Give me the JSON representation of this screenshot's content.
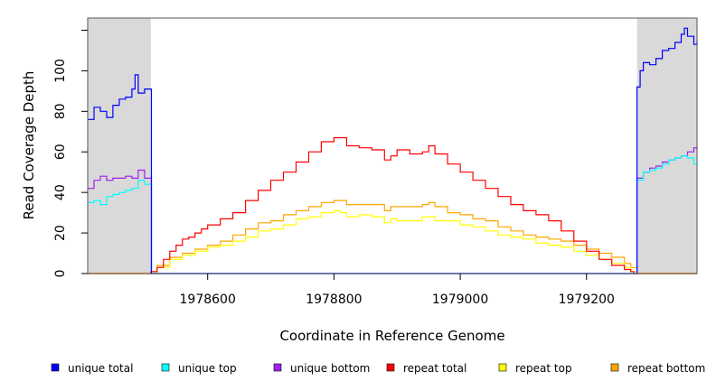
{
  "chart_data": {
    "type": "line",
    "title": "",
    "xlabel": "Coordinate in Reference Genome",
    "ylabel": "Read Coverage Depth",
    "xlim": [
      1978410,
      1979375
    ],
    "ylim": [
      0,
      126
    ],
    "x_ticks": [
      1978600,
      1978800,
      1979000,
      1979200
    ],
    "x_tick_labels": [
      "1978600",
      "1978800",
      "1979000",
      "1979200"
    ],
    "y_ticks": [
      0,
      20,
      40,
      60,
      80,
      100
    ],
    "y_tick_labels": [
      "0",
      "20",
      "40",
      "60",
      "80",
      "100"
    ],
    "grid": false,
    "legend_position": "bottom",
    "shaded_regions": [
      {
        "x0": 1978410,
        "x1": 1978510,
        "color": "#d9d9d9"
      },
      {
        "x0": 1979280,
        "x1": 1979375,
        "color": "#d9d9d9"
      }
    ],
    "series": [
      {
        "name": "unique total",
        "color": "#0000ff",
        "x": [
          1978410,
          1978420,
          1978430,
          1978440,
          1978450,
          1978460,
          1978470,
          1978480,
          1978485,
          1978490,
          1978500,
          1978510,
          1978511,
          1979279,
          1979280,
          1979285,
          1979290,
          1979300,
          1979310,
          1979320,
          1979330,
          1979340,
          1979350,
          1979355,
          1979360,
          1979370,
          1979375
        ],
        "values": [
          76,
          82,
          80,
          77,
          83,
          86,
          87,
          91,
          98,
          89,
          91,
          91,
          0,
          0,
          92,
          100,
          104,
          103,
          106,
          110,
          111,
          114,
          118,
          121,
          117,
          113,
          115
        ]
      },
      {
        "name": "unique top",
        "color": "#00ffff",
        "x": [
          1978410,
          1978420,
          1978430,
          1978440,
          1978450,
          1978460,
          1978470,
          1978480,
          1978490,
          1978500,
          1978510,
          1978511,
          1979279,
          1979280,
          1979290,
          1979300,
          1979310,
          1979320,
          1979330,
          1979340,
          1979350,
          1979360,
          1979370,
          1979375
        ],
        "values": [
          35,
          36,
          34,
          38,
          39,
          40,
          41,
          42,
          46,
          44,
          44,
          0,
          0,
          46,
          50,
          51,
          52,
          54,
          56,
          57,
          58,
          57,
          54,
          53
        ]
      },
      {
        "name": "unique bottom",
        "color": "#a020f0",
        "x": [
          1978410,
          1978420,
          1978430,
          1978440,
          1978450,
          1978460,
          1978470,
          1978480,
          1978490,
          1978500,
          1978510,
          1978511,
          1979279,
          1979280,
          1979290,
          1979300,
          1979310,
          1979320,
          1979330,
          1979340,
          1979350,
          1979360,
          1979370,
          1979375
        ],
        "values": [
          42,
          46,
          48,
          46,
          47,
          47,
          48,
          47,
          51,
          47,
          47,
          0,
          0,
          47,
          50,
          52,
          53,
          55,
          56,
          57,
          58,
          60,
          62,
          61
        ]
      },
      {
        "name": "repeat total",
        "color": "#ff0000",
        "x": [
          1978410,
          1978505,
          1978510,
          1978520,
          1978530,
          1978540,
          1978550,
          1978560,
          1978570,
          1978580,
          1978590,
          1978600,
          1978620,
          1978640,
          1978660,
          1978680,
          1978700,
          1978720,
          1978740,
          1978760,
          1978780,
          1978800,
          1978810,
          1978820,
          1978840,
          1978860,
          1978880,
          1978890,
          1978900,
          1978910,
          1978920,
          1978940,
          1978950,
          1978960,
          1978980,
          1979000,
          1979020,
          1979040,
          1979060,
          1979080,
          1979100,
          1979120,
          1979140,
          1979160,
          1979180,
          1979200,
          1979220,
          1979240,
          1979260,
          1979270,
          1979275,
          1979280,
          1979375
        ],
        "values": [
          0,
          0,
          1,
          3,
          7,
          11,
          14,
          17,
          18,
          20,
          22,
          24,
          27,
          30,
          36,
          41,
          46,
          50,
          55,
          60,
          65,
          67,
          67,
          63,
          62,
          61,
          56,
          58,
          61,
          61,
          59,
          60,
          63,
          59,
          54,
          50,
          46,
          42,
          38,
          34,
          31,
          29,
          26,
          21,
          16,
          11,
          7,
          4,
          2,
          1,
          0,
          0,
          0
        ]
      },
      {
        "name": "repeat top",
        "color": "#ffff00",
        "x": [
          1978410,
          1978505,
          1978510,
          1978520,
          1978540,
          1978560,
          1978580,
          1978600,
          1978620,
          1978640,
          1978660,
          1978680,
          1978700,
          1978720,
          1978740,
          1978760,
          1978780,
          1978800,
          1978810,
          1978820,
          1978840,
          1978860,
          1978880,
          1978890,
          1978900,
          1978920,
          1978940,
          1978960,
          1978980,
          1979000,
          1979020,
          1979040,
          1979060,
          1979080,
          1979100,
          1979120,
          1979140,
          1979160,
          1979180,
          1979200,
          1979220,
          1979240,
          1979260,
          1979270,
          1979280,
          1979375
        ],
        "values": [
          0,
          0,
          0,
          3,
          7,
          9,
          11,
          13,
          14,
          16,
          18,
          21,
          22,
          24,
          27,
          28,
          30,
          31,
          30,
          28,
          29,
          28,
          25,
          27,
          26,
          26,
          28,
          26,
          26,
          24,
          23,
          21,
          19,
          18,
          17,
          15,
          14,
          13,
          11,
          9,
          7,
          5,
          3,
          1,
          0,
          0
        ]
      },
      {
        "name": "repeat bottom",
        "color": "#ffa500",
        "x": [
          1978410,
          1978505,
          1978510,
          1978520,
          1978540,
          1978560,
          1978580,
          1978600,
          1978620,
          1978640,
          1978660,
          1978680,
          1978700,
          1978720,
          1978740,
          1978760,
          1978780,
          1978800,
          1978810,
          1978820,
          1978840,
          1978860,
          1978880,
          1978890,
          1978900,
          1978920,
          1978940,
          1978950,
          1978960,
          1978980,
          1979000,
          1979020,
          1979040,
          1979060,
          1979080,
          1979100,
          1979120,
          1979140,
          1979160,
          1979180,
          1979200,
          1979220,
          1979240,
          1979260,
          1979270,
          1979280,
          1979375
        ],
        "values": [
          0,
          0,
          1,
          4,
          8,
          10,
          12,
          14,
          16,
          19,
          22,
          25,
          26,
          29,
          31,
          33,
          35,
          36,
          36,
          34,
          34,
          34,
          31,
          33,
          33,
          33,
          34,
          35,
          33,
          30,
          29,
          27,
          26,
          23,
          21,
          19,
          18,
          17,
          16,
          14,
          12,
          10,
          8,
          5,
          3,
          0,
          0
        ]
      }
    ]
  }
}
